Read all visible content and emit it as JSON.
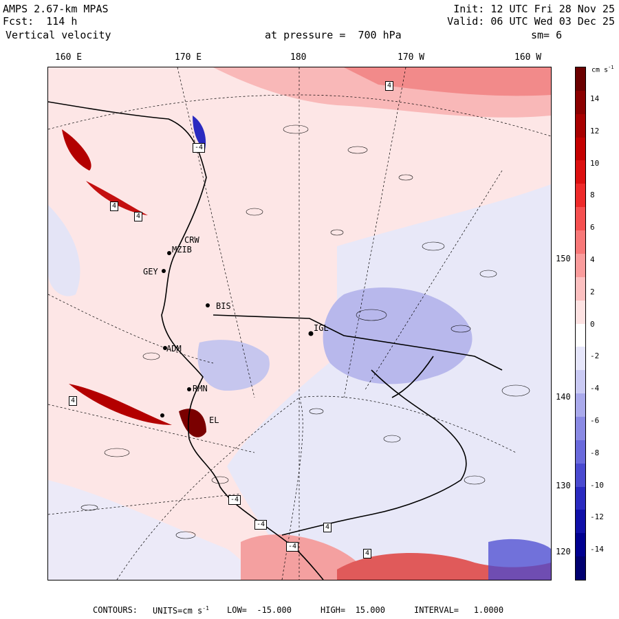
{
  "header": {
    "model": "AMPS 2.67-km MPAS",
    "forecast": "Fcst:  114 h",
    "field": "Vertical velocity",
    "init": "Init: 12 UTC Fri 28 Nov 25",
    "valid": "Valid: 06 UTC Wed 03 Dec 25",
    "pressure": "at pressure =  700 hPa",
    "smoothing": "sm= 6"
  },
  "longitude_labels": [
    "160 E",
    "170 E",
    "180",
    "170 W",
    "160 W"
  ],
  "latitude_labels": [
    "150 W",
    "140 W",
    "130 W",
    "120 W"
  ],
  "stations": [
    "CRW",
    "MZIB",
    "GEY",
    "BIS",
    "IGL",
    "ADM",
    "RMN",
    "EL"
  ],
  "contour_labels": [
    "4",
    "-4",
    "4",
    "-4",
    "4",
    "-4",
    "4",
    "4",
    "-4",
    "4"
  ],
  "colorbar": {
    "unit": "cm s",
    "unit_exp": "-1",
    "ticks": [
      "14",
      "12",
      "10",
      "8",
      "6",
      "4",
      "2",
      "0",
      "-2",
      "-4",
      "-6",
      "-8",
      "-10",
      "-12",
      "-14"
    ],
    "colors": [
      "#6b0000",
      "#8b0000",
      "#a80000",
      "#c40000",
      "#dc1010",
      "#ee2a2a",
      "#f55050",
      "#f87878",
      "#fa9c9c",
      "#fcc0c0",
      "#fde2e2",
      "#ffffff",
      "#e6e6fb",
      "#cacaf4",
      "#aaaaec",
      "#8a8ae4",
      "#6a6adc",
      "#4a4ad0",
      "#2a2ac0",
      "#1010a8",
      "#000090",
      "#000070"
    ]
  },
  "footer": {
    "contours": "CONTOURS:",
    "units_label": "UNITS=cm s",
    "units_exp": "-1",
    "low": "LOW=  -15.000",
    "high": "HIGH=  15.000",
    "interval": "INTERVAL=   1.0000"
  }
}
